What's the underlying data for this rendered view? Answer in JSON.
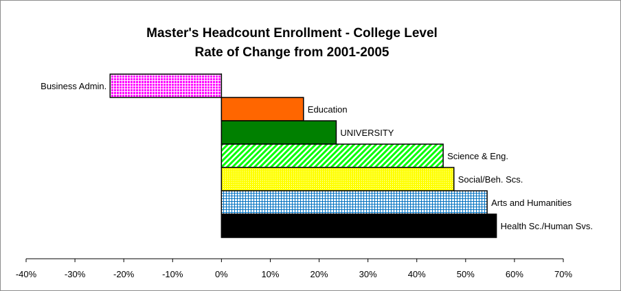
{
  "chart_data": {
    "type": "bar",
    "orientation": "horizontal",
    "title": "Master's Headcount Enrollment - College Level",
    "subtitle": "Rate of Change from 2001-2005",
    "xlabel": "",
    "ylabel": "",
    "xlim": [
      -40,
      70
    ],
    "x_ticks": [
      -40,
      -30,
      -20,
      -10,
      0,
      10,
      20,
      30,
      40,
      50,
      60,
      70
    ],
    "tick_suffix": "%",
    "grid": false,
    "legend": "none",
    "categories": [
      "Business Admin.",
      "Education",
      "UNIVERSITY",
      "Science & Eng.",
      "Social/Beh. Scs.",
      "Arts and Humanities",
      "Health Sc./Human Svs."
    ],
    "values": [
      -22.8,
      16.8,
      23.5,
      45.4,
      47.6,
      54.4,
      56.3
    ],
    "styles": [
      {
        "pattern": "grid",
        "color": "#ff00ff",
        "bg": "#ffffff"
      },
      {
        "pattern": "solid",
        "color": "#ff6600"
      },
      {
        "pattern": "solid",
        "color": "#008000"
      },
      {
        "pattern": "diagonal",
        "color": "#00ff00",
        "bg": "#ffffff"
      },
      {
        "pattern": "dots",
        "color": "#ffff00",
        "bg": "#ffffff"
      },
      {
        "pattern": "grid",
        "color": "#0070c0",
        "bg": "#ffffff"
      },
      {
        "pattern": "solid",
        "color": "#000000"
      }
    ]
  }
}
